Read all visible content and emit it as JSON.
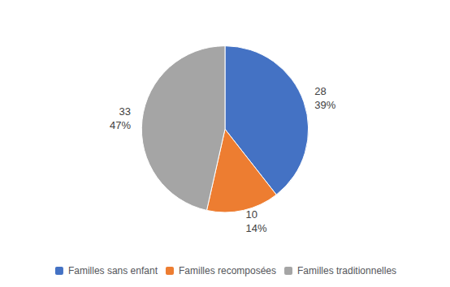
{
  "chart_data": {
    "type": "pie",
    "categories": [
      "Familles sans enfant",
      "Familles recomposées",
      "Familles traditionnelles"
    ],
    "values": [
      28,
      10,
      33
    ],
    "value_labels": [
      "28\n39%",
      "10\n14%",
      "33\n47%"
    ],
    "colors": [
      "#4472C4",
      "#ED7D31",
      "#A5A5A5"
    ],
    "data_labels": true,
    "legend": "bottom"
  }
}
